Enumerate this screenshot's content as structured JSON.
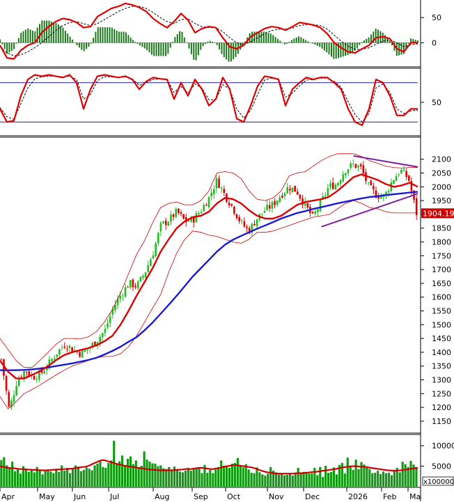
{
  "chart_data": [
    {
      "type": "line",
      "panel": "macd",
      "y_ticks": [
        "50",
        "0"
      ],
      "y_tick_values": [
        50,
        0
      ],
      "ylim": [
        -45,
        82
      ],
      "series": [
        {
          "values": [
            -5,
            -30,
            -32,
            -15,
            -5,
            0,
            20,
            32,
            42,
            48,
            46,
            40,
            30,
            32,
            52,
            60,
            68,
            72,
            78,
            75,
            70,
            62,
            48,
            38,
            30,
            42,
            58,
            45,
            20,
            28,
            32,
            30,
            10,
            -8,
            -12,
            -5,
            12,
            20,
            28,
            32,
            30,
            25,
            32,
            40,
            38,
            35,
            30,
            18,
            0,
            -10,
            -18,
            -20,
            -12,
            -5,
            10,
            12,
            8,
            -12,
            -18,
            0,
            0
          ],
          "color": "#e00000"
        },
        {
          "values": [
            -8,
            -20,
            -26,
            -24,
            -18,
            -10,
            0,
            12,
            24,
            34,
            40,
            42,
            38,
            34,
            38,
            46,
            54,
            62,
            68,
            72,
            72,
            68,
            60,
            50,
            42,
            38,
            46,
            48,
            38,
            32,
            30,
            30,
            22,
            10,
            0,
            -4,
            2,
            10,
            18,
            24,
            27,
            27,
            29,
            34,
            36,
            36,
            34,
            27,
            15,
            3,
            -7,
            -13,
            -13,
            -10,
            -3,
            3,
            6,
            0,
            -8,
            -4,
            -2
          ],
          "color": "#000000",
          "style": "dashed"
        }
      ],
      "histogram_color": "#1a7a1a"
    },
    {
      "type": "line",
      "panel": "stochastic",
      "y_ticks": [
        "50"
      ],
      "y_tick_values": [
        50
      ],
      "ylim": [
        0,
        100
      ],
      "reference_lines": [
        80,
        20
      ],
      "series": [
        {
          "values": [
            40,
            20,
            22,
            60,
            85,
            92,
            90,
            92,
            90,
            88,
            92,
            80,
            40,
            70,
            90,
            92,
            90,
            88,
            90,
            85,
            70,
            82,
            88,
            86,
            85,
            55,
            80,
            60,
            85,
            70,
            45,
            55,
            88,
            70,
            25,
            20,
            45,
            75,
            90,
            88,
            85,
            45,
            70,
            80,
            88,
            85,
            88,
            88,
            80,
            70,
            40,
            20,
            15,
            40,
            85,
            80,
            60,
            30,
            30,
            40,
            40
          ],
          "color": "#e00000"
        },
        {
          "values": [
            42,
            28,
            24,
            48,
            72,
            86,
            89,
            90,
            90,
            89,
            90,
            85,
            55,
            62,
            83,
            89,
            89,
            88,
            89,
            86,
            76,
            80,
            85,
            86,
            85,
            65,
            74,
            64,
            78,
            72,
            54,
            54,
            77,
            70,
            40,
            26,
            38,
            62,
            84,
            87,
            86,
            58,
            64,
            75,
            84,
            85,
            87,
            87,
            82,
            73,
            51,
            31,
            20,
            33,
            72,
            78,
            65,
            40,
            33,
            37,
            38
          ],
          "color": "#000000",
          "style": "dashed"
        }
      ]
    },
    {
      "type": "candlestick",
      "panel": "price",
      "y_ticks": [
        "2100",
        "2050",
        "2000",
        "1950",
        "1900",
        "1850",
        "1800",
        "1750",
        "1700",
        "1650",
        "1600",
        "1550",
        "1500",
        "1450",
        "1400",
        "1350",
        "1300",
        "1250",
        "1200",
        "1150"
      ],
      "y_tick_values": [
        2100,
        2050,
        2000,
        1950,
        1900,
        1850,
        1800,
        1750,
        1700,
        1650,
        1600,
        1550,
        1500,
        1450,
        1400,
        1350,
        1300,
        1250,
        1200,
        1150
      ],
      "ylim": [
        1112,
        2175
      ],
      "last_price_label": "1904.19",
      "last_price": 1904.19,
      "up_color": "#22bb22",
      "down_color": "#dd0000",
      "close": [
        1375,
        1190,
        1300,
        1335,
        1310,
        1325,
        1360,
        1400,
        1430,
        1410,
        1395,
        1415,
        1445,
        1480,
        1560,
        1610,
        1650,
        1640,
        1690,
        1760,
        1860,
        1880,
        1910,
        1875,
        1880,
        1915,
        1960,
        2025,
        1970,
        1925,
        1870,
        1840,
        1885,
        1915,
        1935,
        1970,
        2000,
        1985,
        1935,
        1890,
        1940,
        2000,
        2010,
        2060,
        2080,
        2070,
        2000,
        1970,
        1965,
        2025,
        2060,
        2030,
        1904.19
      ],
      "ma20": [
        1370,
        1330,
        1305,
        1305,
        1318,
        1332,
        1350,
        1372,
        1390,
        1400,
        1408,
        1415,
        1425,
        1440,
        1460,
        1500,
        1550,
        1605,
        1655,
        1705,
        1765,
        1810,
        1850,
        1875,
        1890,
        1895,
        1910,
        1940,
        1960,
        1955,
        1940,
        1915,
        1895,
        1885,
        1885,
        1895,
        1915,
        1935,
        1945,
        1950,
        1955,
        1965,
        1985,
        2010,
        2035,
        2045,
        2035,
        2025,
        2010,
        2000,
        2005,
        2015,
        2000
      ],
      "ma200": [
        1335,
        1335,
        1335,
        1336,
        1338,
        1341,
        1345,
        1350,
        1355,
        1360,
        1366,
        1372,
        1380,
        1392,
        1405,
        1420,
        1438,
        1455,
        1480,
        1508,
        1540,
        1572,
        1605,
        1640,
        1675,
        1705,
        1735,
        1765,
        1790,
        1808,
        1822,
        1835,
        1848,
        1860,
        1872,
        1885,
        1895,
        1905,
        1912,
        1920,
        1926,
        1933,
        1940,
        1946,
        1952,
        1958,
        1963,
        1966,
        1970,
        1973,
        1976,
        1979,
        1982
      ],
      "bb_upper": [
        1450,
        1410,
        1370,
        1345,
        1345,
        1372,
        1400,
        1430,
        1450,
        1450,
        1448,
        1456,
        1475,
        1510,
        1555,
        1615,
        1685,
        1755,
        1805,
        1870,
        1925,
        1940,
        1945,
        1935,
        1935,
        1950,
        1985,
        2050,
        2055,
        2050,
        2030,
        1985,
        1955,
        1950,
        1960,
        1985,
        2040,
        2050,
        2055,
        2075,
        2095,
        2110,
        2120,
        2120,
        2120,
        2110,
        2095,
        2085,
        2075,
        2070,
        2068,
        2070,
        2070
      ],
      "bb_lower": [
        1240,
        1195,
        1220,
        1250,
        1265,
        1282,
        1300,
        1318,
        1335,
        1350,
        1360,
        1370,
        1380,
        1385,
        1385,
        1395,
        1420,
        1460,
        1510,
        1560,
        1610,
        1690,
        1760,
        1810,
        1840,
        1835,
        1825,
        1820,
        1810,
        1800,
        1795,
        1810,
        1835,
        1835,
        1840,
        1850,
        1860,
        1870,
        1880,
        1890,
        1895,
        1900,
        1920,
        1940,
        1950,
        1940,
        1925,
        1920,
        1910,
        1905,
        1905,
        1905,
        1905
      ],
      "trendline_upper": {
        "from": 2112,
        "to": 2072,
        "color": "#7b1fa2"
      },
      "trendline_lower": {
        "from": 1855,
        "to": 1975,
        "color": "#7b1fa2"
      }
    },
    {
      "type": "bar",
      "panel": "volume",
      "y_ticks": [
        "10000",
        "5000"
      ],
      "y_tick_values": [
        10000,
        5000
      ],
      "ylim": [
        0,
        12400
      ],
      "unit_label": "x100000",
      "bar_color": "#119911",
      "ma_color": "#cc0000",
      "values": [
        6500,
        7200,
        5200,
        4400,
        6100,
        3800,
        4500,
        3200,
        5000,
        4400,
        3600,
        4200,
        3500,
        4800,
        4100,
        3000,
        3800,
        4200,
        3700,
        3300,
        4400,
        3600,
        5200,
        3900,
        4600,
        3300,
        4500,
        5200,
        4900,
        3800,
        4100,
        4700,
        4400,
        4000,
        5200,
        5600,
        6100,
        4800,
        4600,
        5800,
        6400,
        11200,
        5600,
        6200,
        7600,
        5300,
        6800,
        7400,
        5500,
        6400,
        4700,
        5100,
        8600,
        6600,
        6100,
        5700,
        5600,
        5000,
        5200,
        4500,
        4300,
        4800,
        4000,
        4900,
        4000,
        3700,
        3500,
        3900,
        4600,
        3900,
        4300,
        4500,
        4600,
        3300,
        5300,
        3400,
        4100,
        3300,
        4200,
        4800,
        6400,
        5100,
        4900,
        4600,
        5600,
        5800,
        7000,
        5200,
        4700,
        5500,
        4200,
        3400,
        3300,
        4700,
        3500,
        3000,
        2700,
        3200,
        4800,
        3900,
        3500,
        3000,
        3100,
        2800,
        2900,
        3300,
        2700,
        3100,
        4600,
        3300,
        3600,
        3600,
        3200,
        3300,
        4600,
        2800,
        4800,
        2400,
        5100,
        3400,
        3600,
        4700,
        3000,
        5300,
        5800,
        3200,
        7100,
        5100,
        4100,
        6600,
        4300,
        6000,
        5400,
        4600,
        4300,
        3300,
        3400,
        3900,
        3100,
        3700,
        3300,
        3400,
        2800,
        4000,
        4600,
        3500,
        6100,
        5500,
        4800,
        6300,
        5400,
        4800
      ],
      "ma": [
        5000,
        4900,
        4700,
        4600,
        4500,
        4500,
        4400,
        4300,
        4300,
        4250,
        4200,
        4150,
        4100,
        4100,
        4050,
        4000,
        4000,
        4000,
        4050,
        4100,
        4150,
        4200,
        4250,
        4300,
        4300,
        4350,
        4400,
        4500,
        4600,
        4700,
        4800,
        4900,
        5100,
        5400,
        5700,
        6000,
        6300,
        6500,
        6400,
        6200,
        6000,
        5800,
        5600,
        5400,
        5300,
        5100,
        5000,
        4900,
        4800,
        4700,
        4600,
        4500,
        4400,
        4300,
        4200,
        4150,
        4100,
        4050,
        4000,
        4000,
        4000,
        4000,
        4000,
        4050,
        4100,
        4150,
        4200,
        4300,
        4300,
        4300,
        4400,
        4500,
        4600,
        4600,
        4500,
        4400,
        4300,
        4300,
        4400,
        4500,
        4700,
        4900,
        5000,
        5100,
        5200,
        5300,
        5200,
        5100,
        5000,
        4900,
        4800,
        4700,
        4500,
        4300,
        4000,
        3800,
        3600,
        3500,
        3400,
        3300,
        3200,
        3200,
        3200,
        3200,
        3200,
        3200,
        3200,
        3300,
        3300,
        3300,
        3400,
        3400,
        3500,
        3600,
        3600,
        3700,
        3800,
        3900,
        4000,
        4100,
        4200,
        4300,
        4400,
        4600,
        4700,
        4800,
        4900,
        5000,
        5000,
        5000,
        4900,
        4900,
        4800,
        4700,
        4600,
        4500,
        4400,
        4300,
        4200,
        4100,
        4000,
        3950,
        3900,
        3900,
        3950,
        4000,
        4100,
        4200,
        4300,
        4400,
        4500,
        4500
      ]
    }
  ],
  "x_axis": {
    "months": [
      "Apr",
      "May",
      "Jun",
      "Jul",
      "Aug",
      "Sep",
      "Oct",
      "Nov",
      "Dec",
      "2026",
      "Feb",
      "Ma"
    ]
  }
}
